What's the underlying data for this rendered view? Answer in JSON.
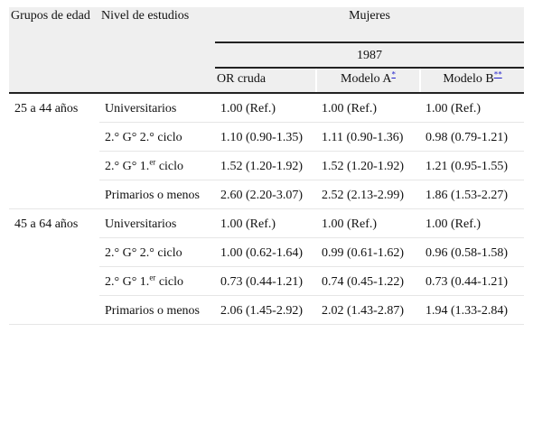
{
  "header": {
    "group_label": "Grupos de edad",
    "level_label": "Nivel de estudios",
    "group_title": "Mujeres",
    "year": "1987",
    "columns": [
      {
        "label": "OR cruda"
      },
      {
        "label": "Modelo A",
        "note": "*"
      },
      {
        "label": "Modelo B",
        "note": "**"
      }
    ]
  },
  "table": {
    "groups": [
      {
        "label": "25 a 44 años",
        "rows": [
          {
            "level": "Universitarios",
            "values": [
              "1.00 (Ref.)",
              "1.00 (Ref.)",
              "1.00 (Ref.)"
            ]
          },
          {
            "level": "2.° G° 2.° ciclo",
            "values": [
              "1.10 (0.90-1.35)",
              "1.11 (0.90-1.36)",
              "0.98 (0.79-1.21)"
            ]
          },
          {
            "level": "2.° G° 1.",
            "level_sup": "er",
            "level_end": " ciclo",
            "values": [
              "1.52 (1.20-1.92)",
              "1.52 (1.20-1.92)",
              "1.21 (0.95-1.55)"
            ]
          },
          {
            "level": "Primarios o menos",
            "values": [
              "2.60 (2.20-3.07)",
              "2.52 (2.13-2.99)",
              "1.86 (1.53-2.27)"
            ]
          }
        ]
      },
      {
        "label": "45 a 64 años",
        "rows": [
          {
            "level": "Universitarios",
            "values": [
              "1.00 (Ref.)",
              "1.00 (Ref.)",
              "1.00 (Ref.)"
            ]
          },
          {
            "level": "2.° G° 2.° ciclo",
            "values": [
              "1.00 (0.62-1.64)",
              "0.99 (0.61-1.62)",
              "0.96 (0.58-1.58)"
            ]
          },
          {
            "level": "2.° G° 1.",
            "level_sup": "er",
            "level_end": " ciclo",
            "values": [
              "0.73 (0.44-1.21)",
              "0.74 (0.45-1.22)",
              "0.73 (0.44-1.21)"
            ]
          },
          {
            "level": "Primarios o menos",
            "values": [
              "2.06 (1.45-2.92)",
              "2.02 (1.43-2.87)",
              "1.94 (1.33-2.84)"
            ]
          }
        ]
      }
    ]
  }
}
